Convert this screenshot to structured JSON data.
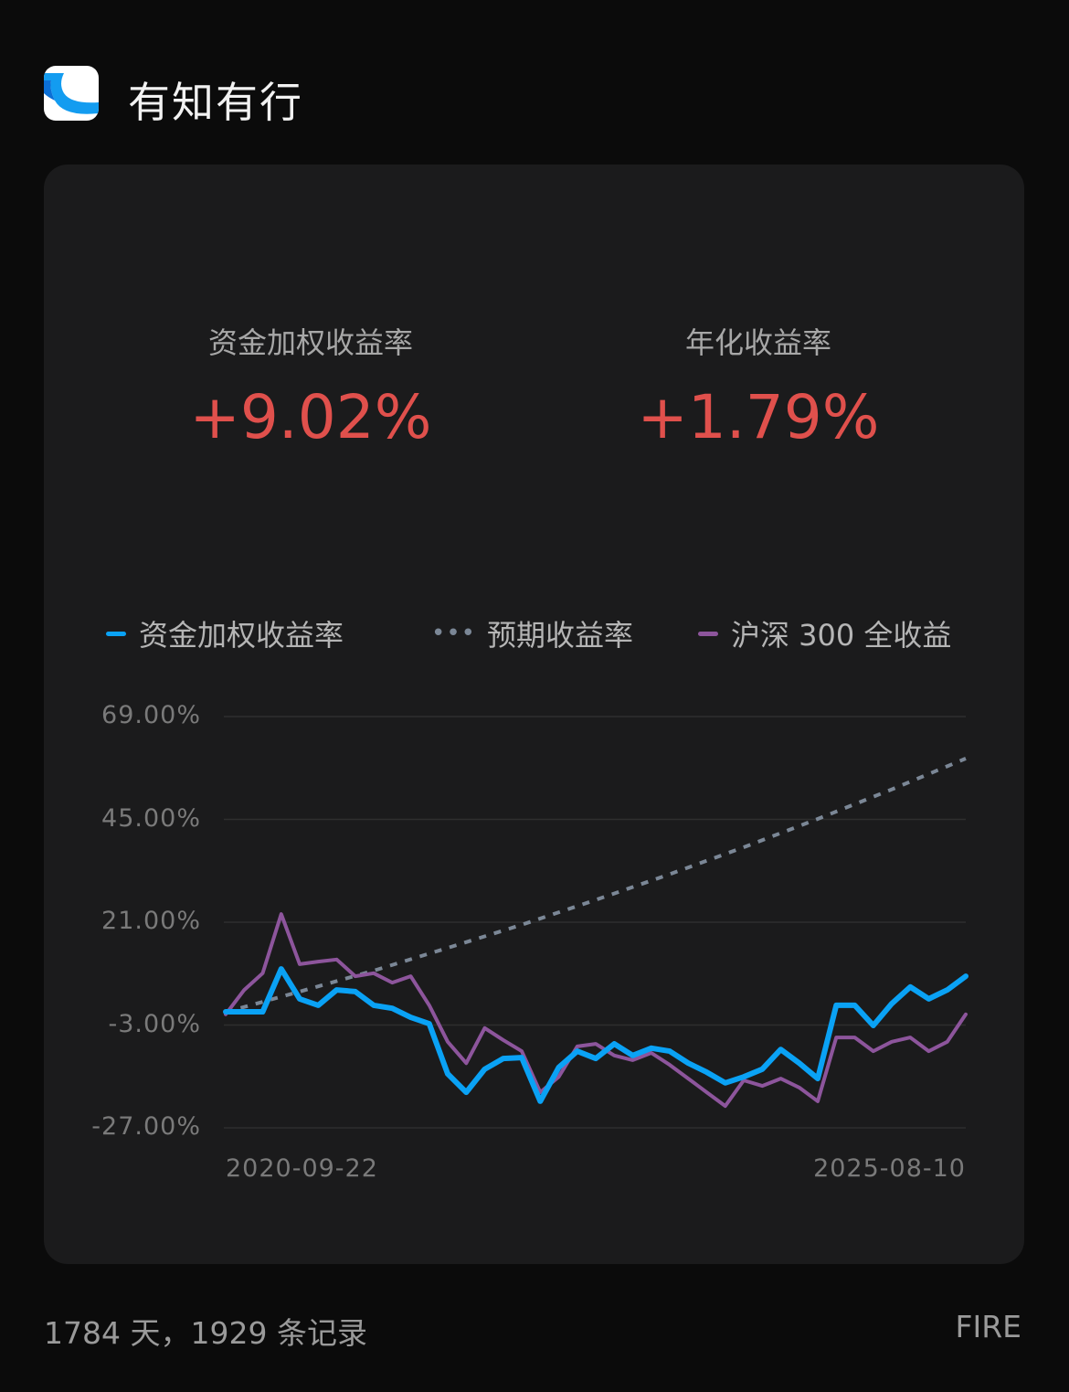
{
  "app": {
    "name": "有知有行",
    "logo_icon": "youzhiyouxing-logo"
  },
  "metrics": [
    {
      "label": "资金加权收益率",
      "value": "+9.02%"
    },
    {
      "label": "年化收益率",
      "value": "+1.79%"
    }
  ],
  "colors": {
    "positive": "#e0504c",
    "money_weighted": "#0aa2f5",
    "expected": "#7b8796",
    "csi300": "#8d559c"
  },
  "chart_data": {
    "type": "line",
    "x_start": "2020-09-22",
    "x_end": "2025-08-10",
    "x_tick_labels": [
      "2020-09-22",
      "2025-08-10"
    ],
    "y_tick_labels": [
      "69.00%",
      "45.00%",
      "21.00%",
      "-3.00%",
      "-27.00%"
    ],
    "y_ticks": [
      69,
      45,
      21,
      -3,
      -27
    ],
    "ylim": [
      -27,
      69
    ],
    "grid": true,
    "legend_position": "top",
    "series": [
      {
        "name": "资金加权收益率",
        "style": "solid",
        "color": "#0aa2f5",
        "values": [
          0.1,
          0.1,
          0.1,
          10.1,
          3.1,
          1.6,
          5.2,
          4.8,
          1.6,
          0.9,
          -1.2,
          -2.7,
          -14.4,
          -18.7,
          -13.3,
          -10.8,
          -10.6,
          -20.8,
          -12.9,
          -9.1,
          -10.8,
          -7.4,
          -10.1,
          -8.4,
          -9.1,
          -11.9,
          -14.0,
          -16.5,
          -15.1,
          -13.3,
          -8.7,
          -11.9,
          -15.5,
          1.6,
          1.6,
          -3.1,
          2.0,
          5.9,
          3.1,
          5.2,
          8.4
        ]
      },
      {
        "name": "预期收益率",
        "style": "dotted",
        "color": "#7b8796",
        "values": [
          0,
          4.8,
          9.7,
          15.0,
          20.4,
          26.2,
          32.2,
          38.5,
          45.1,
          52.0,
          59.2
        ]
      },
      {
        "name": "沪深 300 全收益",
        "style": "solid",
        "color": "#8d559c",
        "values": [
          -0.5,
          5.2,
          9.1,
          22.9,
          11.2,
          11.8,
          12.3,
          8.4,
          9.1,
          6.9,
          8.4,
          1.6,
          -6.9,
          -11.9,
          -3.7,
          -6.5,
          -9.1,
          -18.7,
          -15.1,
          -8.0,
          -7.4,
          -10.1,
          -11.2,
          -9.5,
          -12.3,
          -15.5,
          -18.7,
          -21.9,
          -15.9,
          -17.2,
          -15.5,
          -17.6,
          -20.8,
          -5.9,
          -5.9,
          -9.1,
          -6.9,
          -5.9,
          -9.1,
          -6.9,
          -0.5
        ]
      }
    ]
  },
  "footer": {
    "summary": "1784 天，1929 条记录",
    "tag": "FIRE"
  }
}
